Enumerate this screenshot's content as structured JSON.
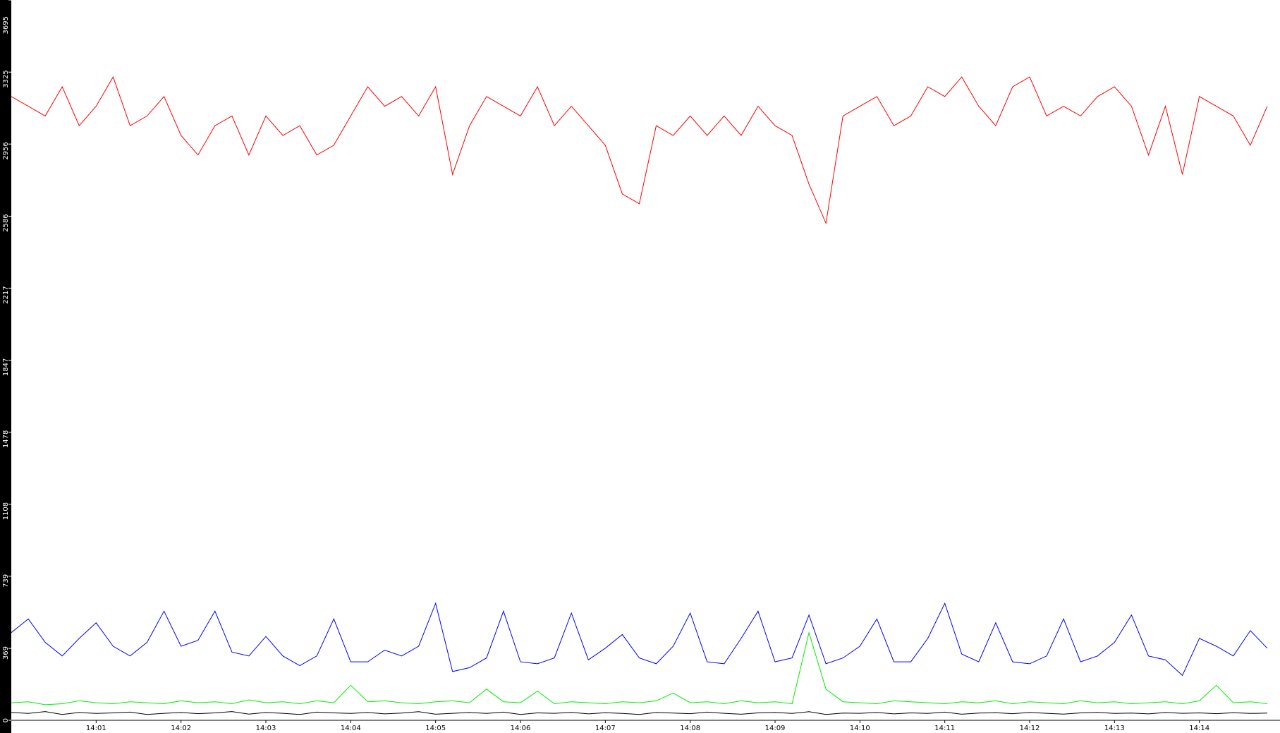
{
  "chart_data": {
    "type": "line",
    "x": [
      0,
      0.2,
      0.4,
      0.6,
      0.8,
      1.0,
      1.2,
      1.4,
      1.6,
      1.8,
      2.0,
      2.2,
      2.4,
      2.6,
      2.8,
      3.0,
      3.2,
      3.4,
      3.6,
      3.8,
      4.0,
      4.2,
      4.4,
      4.6,
      4.8,
      5.0,
      5.2,
      5.4,
      5.6,
      5.8,
      6.0,
      6.2,
      6.4,
      6.6,
      6.8,
      7.0,
      7.2,
      7.4,
      7.6,
      7.8,
      8.0,
      8.2,
      8.4,
      8.6,
      8.8,
      9.0,
      9.2,
      9.4,
      9.6,
      9.8,
      10.0,
      10.2,
      10.4,
      10.6,
      10.8,
      11.0,
      11.2,
      11.4,
      11.6,
      11.8,
      12.0,
      12.2,
      12.4,
      12.6,
      12.8,
      13.0,
      13.2,
      13.4,
      13.6,
      13.8,
      14.0,
      14.2,
      14.4,
      14.6,
      14.8
    ],
    "series": [
      {
        "color": "#ff0000",
        "values": [
          3200,
          3150,
          3100,
          3250,
          3050,
          3150,
          3300,
          3050,
          3100,
          3200,
          3000,
          2900,
          3050,
          3100,
          2900,
          3100,
          3000,
          3050,
          2900,
          2950,
          3100,
          3250,
          3150,
          3200,
          3100,
          3250,
          2800,
          3050,
          3200,
          3150,
          3100,
          3250,
          3050,
          3150,
          3050,
          2950,
          2700,
          2650,
          3050,
          3000,
          3100,
          3000,
          3100,
          3000,
          3150,
          3050,
          3000,
          2750,
          2550,
          3100,
          3150,
          3200,
          3050,
          3100,
          3250,
          3200,
          3300,
          3150,
          3050,
          3250,
          3300,
          3100,
          3150,
          3100,
          3200,
          3250,
          3150,
          2900,
          3150,
          2800,
          3200,
          3150,
          3100,
          2950,
          3150
        ]
      },
      {
        "color": "#0000ff",
        "values": [
          450,
          520,
          400,
          330,
          420,
          500,
          380,
          330,
          400,
          560,
          380,
          410,
          560,
          350,
          330,
          430,
          330,
          280,
          330,
          520,
          300,
          300,
          360,
          330,
          380,
          600,
          250,
          270,
          320,
          560,
          300,
          290,
          320,
          550,
          310,
          370,
          440,
          320,
          290,
          380,
          550,
          300,
          290,
          420,
          560,
          300,
          320,
          540,
          290,
          320,
          380,
          520,
          300,
          300,
          420,
          600,
          340,
          300,
          500,
          300,
          290,
          330,
          520,
          300,
          330,
          400,
          540,
          330,
          310,
          230,
          420,
          380,
          330,
          460,
          370
        ]
      },
      {
        "color": "#00ee00",
        "values": [
          90,
          95,
          80,
          85,
          100,
          90,
          85,
          95,
          90,
          85,
          100,
          90,
          95,
          85,
          105,
          90,
          95,
          85,
          100,
          90,
          180,
          95,
          100,
          90,
          85,
          95,
          100,
          90,
          160,
          95,
          90,
          150,
          85,
          95,
          90,
          85,
          95,
          90,
          100,
          140,
          90,
          95,
          85,
          100,
          90,
          95,
          85,
          450,
          160,
          95,
          90,
          85,
          100,
          95,
          90,
          85,
          95,
          90,
          100,
          85,
          95,
          90,
          85,
          100,
          90,
          95,
          85,
          90,
          95,
          85,
          100,
          180,
          90,
          95,
          85
        ]
      },
      {
        "color": "#000000",
        "values": [
          40,
          35,
          45,
          30,
          40,
          35,
          38,
          42,
          30,
          36,
          40,
          34,
          38,
          45,
          32,
          40,
          36,
          30,
          42,
          38,
          35,
          40,
          33,
          37,
          44,
          31,
          36,
          40,
          35,
          42,
          30,
          38,
          36,
          41,
          33,
          39,
          35,
          30,
          40,
          37,
          34,
          42,
          36,
          31,
          38,
          40,
          35,
          44,
          30,
          37,
          36,
          40,
          33,
          38,
          35,
          42,
          31,
          37,
          39,
          34,
          40,
          36,
          32,
          38,
          41,
          35,
          37,
          33,
          40,
          36,
          38,
          34,
          39,
          35,
          37
        ]
      }
    ],
    "xlim": [
      0,
      14.95
    ],
    "xticks": [
      {
        "value": 1,
        "label": "14:01"
      },
      {
        "value": 2,
        "label": "14:02"
      },
      {
        "value": 3,
        "label": "14:03"
      },
      {
        "value": 4,
        "label": "14:04"
      },
      {
        "value": 5,
        "label": "14:05"
      },
      {
        "value": 6,
        "label": "14:06"
      },
      {
        "value": 7,
        "label": "14:07"
      },
      {
        "value": 8,
        "label": "14:08"
      },
      {
        "value": 9,
        "label": "14:09"
      },
      {
        "value": 10,
        "label": "14:10"
      },
      {
        "value": 11,
        "label": "14:11"
      },
      {
        "value": 12,
        "label": "14:12"
      },
      {
        "value": 13,
        "label": "14:13"
      },
      {
        "value": 14,
        "label": "14:14"
      }
    ],
    "ylim": [
      0,
      3695
    ],
    "yticks": [
      0,
      369,
      739,
      1108,
      1478,
      1847,
      2217,
      2586,
      2956,
      3325,
      3695
    ],
    "grid": false
  }
}
